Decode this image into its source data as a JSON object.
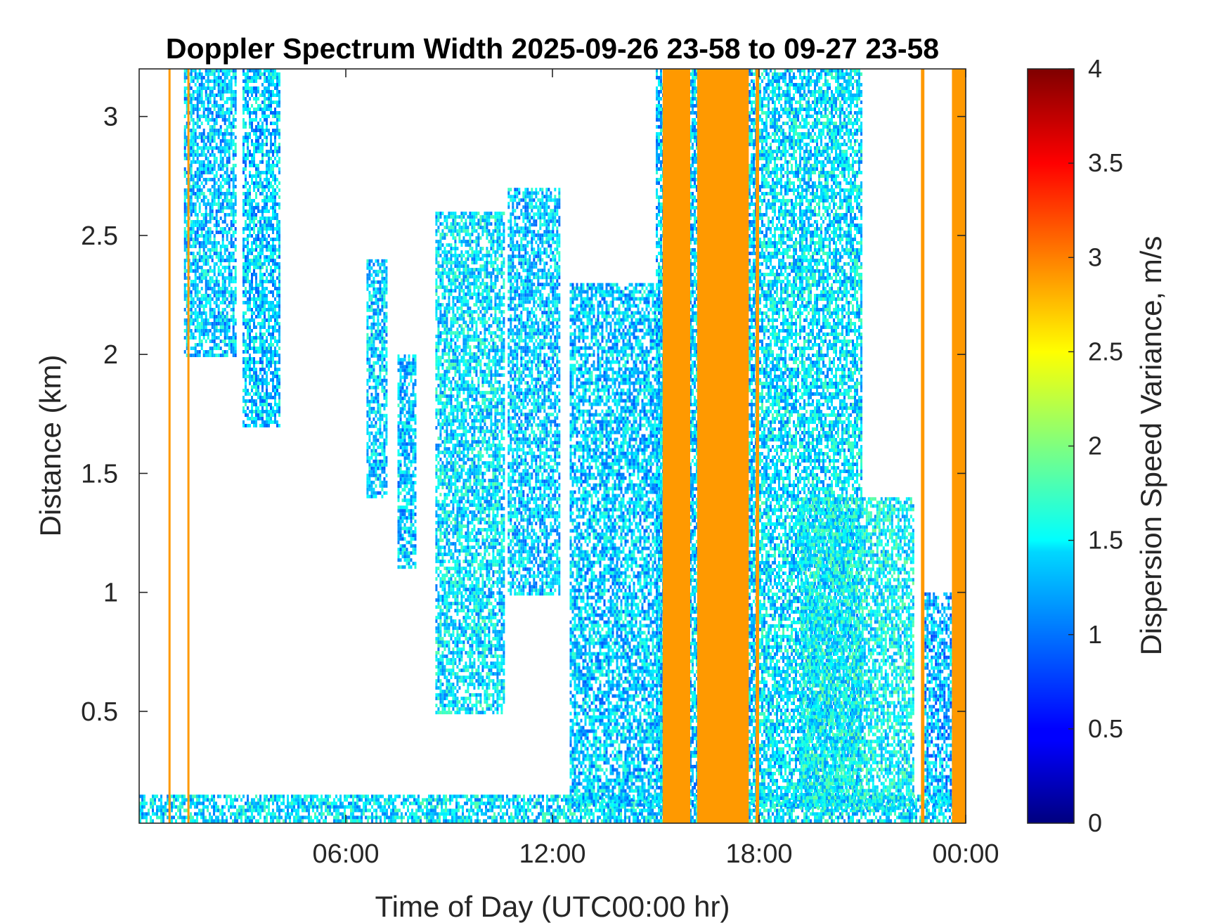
{
  "chart_data": {
    "type": "heatmap",
    "title": "Doppler Spectrum Width 2025-09-26 23-58 to 09-27 23-58",
    "xlabel": "Time of Day (UTC00:00 hr)",
    "ylabel": "Distance (km)",
    "x_units": "hours",
    "xlim": [
      0,
      24
    ],
    "ylim": [
      0.03,
      3.2
    ],
    "x_ticks": [
      {
        "value": 6,
        "label": "06:00"
      },
      {
        "value": 12,
        "label": "12:00"
      },
      {
        "value": 18,
        "label": "18:00"
      },
      {
        "value": 24,
        "label": "00:00"
      }
    ],
    "y_ticks": [
      {
        "value": 0.5,
        "label": "0.5"
      },
      {
        "value": 1,
        "label": "1"
      },
      {
        "value": 1.5,
        "label": "1.5"
      },
      {
        "value": 2,
        "label": "2"
      },
      {
        "value": 2.5,
        "label": "2.5"
      },
      {
        "value": 3,
        "label": "3"
      }
    ],
    "colorbar": {
      "label": "Dispersion Speed Variance, m/s",
      "colormap": "jet",
      "range": [
        0,
        4
      ],
      "ticks": [
        {
          "value": 0,
          "label": "0"
        },
        {
          "value": 0.5,
          "label": "0.5"
        },
        {
          "value": 1,
          "label": "1"
        },
        {
          "value": 1.5,
          "label": "1.5"
        },
        {
          "value": 2,
          "label": "2"
        },
        {
          "value": 2.5,
          "label": "2.5"
        },
        {
          "value": 3,
          "label": "3"
        },
        {
          "value": 3.5,
          "label": "3.5"
        },
        {
          "value": 4,
          "label": "4"
        }
      ]
    },
    "saturated_bands": [
      {
        "x_start": 0.85,
        "x_end": 0.9,
        "y_start": 0.03,
        "y_end": 3.2,
        "value": 3
      },
      {
        "x_start": 1.4,
        "x_end": 1.45,
        "y_start": 0.03,
        "y_end": 3.2,
        "value": 3
      },
      {
        "x_start": 15.2,
        "x_end": 16.0,
        "y_start": 0.03,
        "y_end": 3.2,
        "value": 3
      },
      {
        "x_start": 16.2,
        "x_end": 17.7,
        "y_start": 0.03,
        "y_end": 3.2,
        "value": 3
      },
      {
        "x_start": 17.9,
        "x_end": 18.0,
        "y_start": 0.03,
        "y_end": 3.2,
        "value": 3
      },
      {
        "x_start": 22.7,
        "x_end": 22.8,
        "y_start": 0.03,
        "y_end": 3.2,
        "value": 3
      },
      {
        "x_start": 23.6,
        "x_end": 24.0,
        "y_start": 0.03,
        "y_end": 3.2,
        "value": 3
      }
    ],
    "echo_regions": [
      {
        "x_start": 0.0,
        "x_end": 24.0,
        "y_start": 0.03,
        "y_end": 0.15,
        "value": 1.4
      },
      {
        "x_start": 1.3,
        "x_end": 2.8,
        "y_start": 2.0,
        "y_end": 3.2,
        "value": 1.3
      },
      {
        "x_start": 3.0,
        "x_end": 4.1,
        "y_start": 1.7,
        "y_end": 3.2,
        "value": 1.3
      },
      {
        "x_start": 6.6,
        "x_end": 7.2,
        "y_start": 1.4,
        "y_end": 2.4,
        "value": 1.3
      },
      {
        "x_start": 7.5,
        "x_end": 8.0,
        "y_start": 1.1,
        "y_end": 2.0,
        "value": 1.3
      },
      {
        "x_start": 8.6,
        "x_end": 10.6,
        "y_start": 0.5,
        "y_end": 2.6,
        "value": 1.4
      },
      {
        "x_start": 10.7,
        "x_end": 12.2,
        "y_start": 1.0,
        "y_end": 2.7,
        "value": 1.3
      },
      {
        "x_start": 12.5,
        "x_end": 15.3,
        "y_start": 0.1,
        "y_end": 2.3,
        "value": 1.3
      },
      {
        "x_start": 15.0,
        "x_end": 17.9,
        "y_start": 0.1,
        "y_end": 3.2,
        "value": 1.3
      },
      {
        "x_start": 18.0,
        "x_end": 21.0,
        "y_start": 0.1,
        "y_end": 3.2,
        "value": 1.4
      },
      {
        "x_start": 19.2,
        "x_end": 22.5,
        "y_start": 0.1,
        "y_end": 1.4,
        "value": 1.5
      },
      {
        "x_start": 22.8,
        "x_end": 23.6,
        "y_start": 0.1,
        "y_end": 1.0,
        "value": 1.2
      }
    ]
  }
}
